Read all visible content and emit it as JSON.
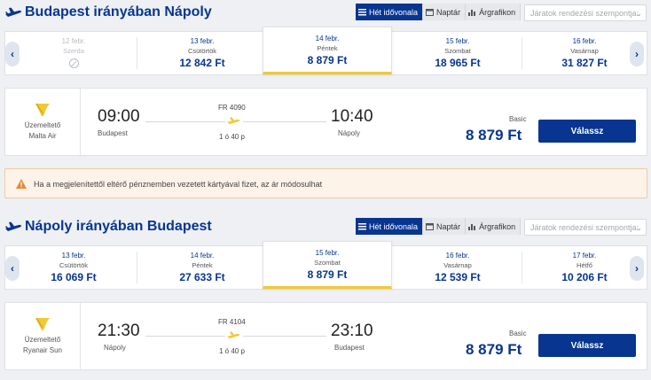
{
  "view_buttons": {
    "week": "Hét idővonala",
    "calendar": "Naptár",
    "chart": "Árgrafikon"
  },
  "sort": {
    "placeholder": "Járatok rendezési szempontja:"
  },
  "outbound": {
    "title": "Budapest irányában Nápoly",
    "dates": [
      {
        "date": "12 febr.",
        "weekday": "Szerda",
        "price": "",
        "state": "disabled"
      },
      {
        "date": "13 febr.",
        "weekday": "Csütörtök",
        "price": "12 842 Ft",
        "state": "normal"
      },
      {
        "date": "14 febr.",
        "weekday": "Péntek",
        "price": "8 879 Ft",
        "state": "selected"
      },
      {
        "date": "15 febr.",
        "weekday": "Szombat",
        "price": "18 965 Ft",
        "state": "normal"
      },
      {
        "date": "16 febr.",
        "weekday": "Vasárnap",
        "price": "31 827 Ft",
        "state": "normal"
      }
    ],
    "flight": {
      "operator_label": "Üzemeltető",
      "operator_name": "Malta Air",
      "dep_time": "09:00",
      "dep_city": "Budapest",
      "flight_no": "FR 4090",
      "duration": "1 ó 40 p",
      "arr_time": "10:40",
      "arr_city": "Nápoly",
      "fare_name": "Basic",
      "price": "8 879 Ft",
      "select_label": "Válassz"
    }
  },
  "warning": {
    "text": "Ha a megjelenítettől eltérő pénznemben vezetett kártyával fizet, az ár módosulhat"
  },
  "inbound": {
    "title": "Nápoly irányában Budapest",
    "dates": [
      {
        "date": "13 febr.",
        "weekday": "Csütörtök",
        "price": "16 069 Ft",
        "state": "normal"
      },
      {
        "date": "14 febr.",
        "weekday": "Péntek",
        "price": "27 633 Ft",
        "state": "normal"
      },
      {
        "date": "15 febr.",
        "weekday": "Szombat",
        "price": "8 879 Ft",
        "state": "selected"
      },
      {
        "date": "16 febr.",
        "weekday": "Vasárnap",
        "price": "12 539 Ft",
        "state": "normal"
      },
      {
        "date": "17 febr.",
        "weekday": "Hétfő",
        "price": "10 206 Ft",
        "state": "normal"
      }
    ],
    "flight": {
      "operator_label": "Üzemeltető",
      "operator_name": "Ryanair Sun",
      "dep_time": "21:30",
      "dep_city": "Nápoly",
      "flight_no": "FR 4104",
      "duration": "1 ó 40 p",
      "arr_time": "23:10",
      "arr_city": "Budapest",
      "fare_name": "Basic",
      "price": "8 879 Ft",
      "select_label": "Válassz"
    }
  },
  "icons": {
    "header": "plane-icon",
    "arrows": [
      "chevron-left-icon",
      "chevron-right-icon"
    ],
    "logo": "ryanair-harp-icon",
    "warning": "warning-triangle-icon"
  },
  "colors": {
    "brand": "#073590",
    "accent": "#f1c933",
    "warning_bg": "#fdf3e8"
  }
}
